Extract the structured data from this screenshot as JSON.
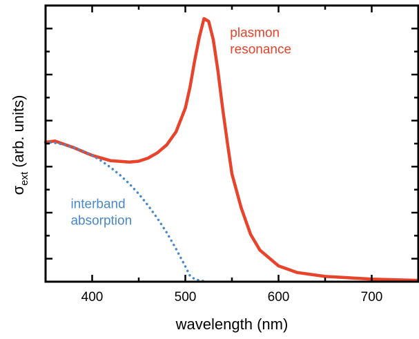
{
  "chart_data": {
    "type": "line",
    "xlabel": "wavelength (nm)",
    "ylabel_symbol": "σ",
    "ylabel_subscript": "ext",
    "ylabel_rest": " (arb. units)",
    "xlim": [
      350,
      750
    ],
    "ylim": [
      0,
      1.05
    ],
    "x_ticks": [
      400,
      500,
      600,
      700
    ],
    "x_tick_labels": [
      "400",
      "500",
      "600",
      "700"
    ],
    "grid": false,
    "series": [
      {
        "name": "plasmon resonance",
        "color": "#e8432b",
        "style": "solid",
        "x": [
          350,
          360,
          380,
          400,
          420,
          440,
          450,
          460,
          470,
          480,
          490,
          500,
          505,
          510,
          515,
          520,
          525,
          530,
          535,
          540,
          545,
          550,
          560,
          570,
          580,
          600,
          620,
          650,
          700,
          750
        ],
        "y": [
          0.53,
          0.535,
          0.51,
          0.48,
          0.46,
          0.455,
          0.458,
          0.47,
          0.49,
          0.52,
          0.57,
          0.66,
          0.74,
          0.84,
          0.93,
          1.0,
          0.99,
          0.92,
          0.8,
          0.66,
          0.53,
          0.41,
          0.28,
          0.18,
          0.12,
          0.06,
          0.035,
          0.02,
          0.01,
          0.005
        ]
      },
      {
        "name": "interband absorption",
        "color": "#4a89c8",
        "style": "dotted",
        "x": [
          350,
          360,
          370,
          380,
          390,
          400,
          410,
          420,
          430,
          440,
          450,
          460,
          470,
          480,
          490,
          500,
          505,
          510,
          515,
          520,
          522
        ],
        "y": [
          0.53,
          0.528,
          0.521,
          0.51,
          0.497,
          0.48,
          0.459,
          0.434,
          0.405,
          0.372,
          0.334,
          0.29,
          0.241,
          0.187,
          0.125,
          0.058,
          0.022,
          0.01,
          0.005,
          0.002,
          0.0
        ]
      }
    ],
    "annotations": [
      {
        "lines": [
          "plasmon",
          "resonance"
        ],
        "color": "#e8432b",
        "x": 548,
        "y": 0.93
      },
      {
        "lines": [
          "interband",
          "absorption"
        ],
        "color": "#4a89c8",
        "x": 377,
        "y": 0.28
      }
    ]
  }
}
